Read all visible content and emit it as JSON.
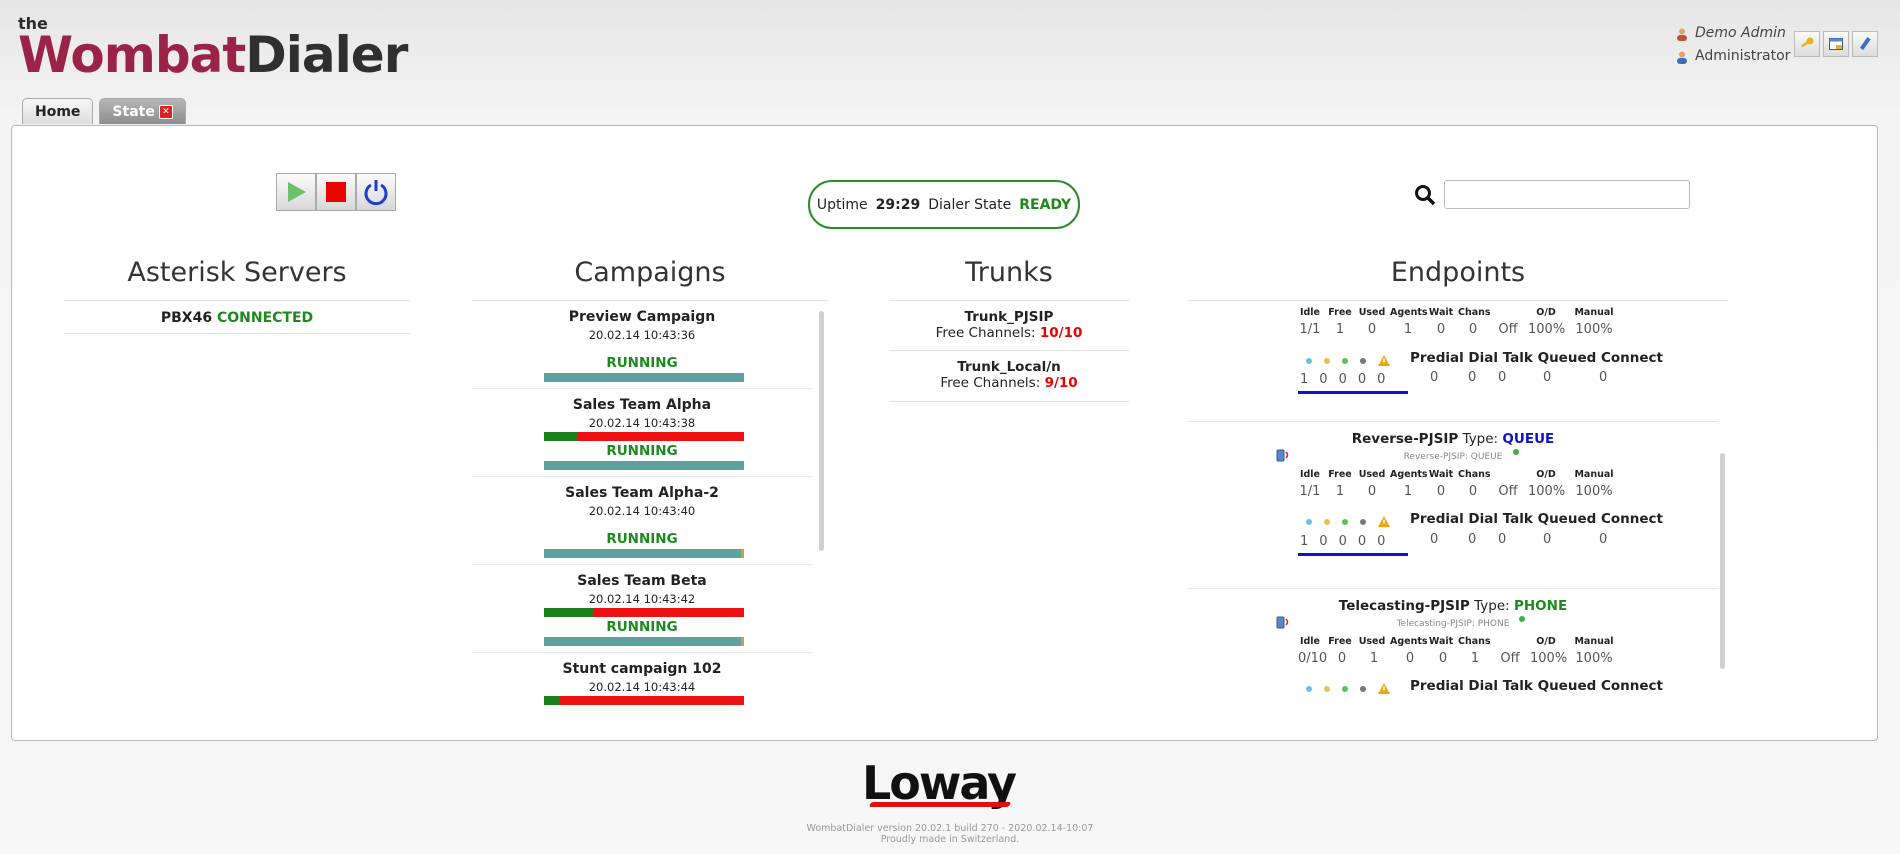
{
  "app": {
    "logo_prefix": "the",
    "logo_word1": "Wombat",
    "logo_word2": "Dialer"
  },
  "user": {
    "name": "Demo Admin",
    "role": "Administrator"
  },
  "tabs": [
    {
      "label": "Home"
    },
    {
      "label": "State"
    }
  ],
  "status": {
    "uptime_label": "Uptime",
    "uptime_value": "29:29",
    "dialer_label": "Dialer State",
    "dialer_value": "READY"
  },
  "search": {
    "value": "",
    "placeholder": ""
  },
  "sections": {
    "servers": "Asterisk Servers",
    "campaigns": "Campaigns",
    "trunks": "Trunks",
    "endpoints": "Endpoints"
  },
  "servers": [
    {
      "name": "PBX46",
      "state": "CONNECTED"
    }
  ],
  "campaigns": [
    {
      "name": "Preview Campaign",
      "time": "20.02.14 10:43:36",
      "status": "RUNNING",
      "progress": null
    },
    {
      "name": "Sales Team Alpha",
      "time": "20.02.14 10:43:38",
      "status": "RUNNING",
      "progress": 0.17
    },
    {
      "name": "Sales Team Alpha-2",
      "time": "20.02.14 10:43:40",
      "status": "RUNNING",
      "progress": null
    },
    {
      "name": "Sales Team Beta",
      "time": "20.02.14 10:43:42",
      "status": "RUNNING",
      "progress": 0.25
    },
    {
      "name": "Stunt campaign 102",
      "time": "20.02.14 10:43:44",
      "status": "",
      "progress": 0.08
    }
  ],
  "trunks": [
    {
      "name": "Trunk_PJSIP",
      "label": "Free Channels:",
      "free": "10/10"
    },
    {
      "name": "Trunk_Local/n",
      "label": "Free Channels:",
      "free": "9/10"
    }
  ],
  "endpoint_headers": [
    "Idle",
    "Free",
    "Used",
    "Agents",
    "Wait",
    "Chans",
    "O/D",
    "Manual"
  ],
  "predial_label": "Predial Dial Talk Queued Connect",
  "endpoints": [
    {
      "name": "",
      "type_label": "",
      "type": "",
      "sub": "",
      "stats": [
        "1/1",
        "1",
        "0",
        "1",
        "0",
        "0",
        "Off",
        "100%",
        "100%"
      ],
      "counts": [
        "1",
        "0",
        "0",
        "0",
        "0"
      ],
      "predial": [
        "0",
        "0",
        "0",
        "0",
        "0"
      ]
    },
    {
      "name": "Reverse-PJSIP",
      "type_label": "Type:",
      "type": "QUEUE",
      "sub": "Reverse-PJSIP: QUEUE",
      "stats": [
        "1/1",
        "1",
        "0",
        "1",
        "0",
        "0",
        "Off",
        "100%",
        "100%"
      ],
      "counts": [
        "1",
        "0",
        "0",
        "0",
        "0"
      ],
      "predial": [
        "0",
        "0",
        "0",
        "0",
        "0"
      ]
    },
    {
      "name": "Telecasting-PJSIP",
      "type_label": "Type:",
      "type": "PHONE",
      "sub": "Telecasting-PJSIP: PHONE",
      "stats": [
        "0/10",
        "0",
        "1",
        "0",
        "0",
        "1",
        "Off",
        "100%",
        "100%"
      ],
      "counts": [],
      "predial": []
    }
  ],
  "footer": {
    "brand": "Loway",
    "version": "WombatDialer version 20.02.1 build 270 - 2020.02.14-10:07",
    "made": "Proudly made in Switzerland."
  },
  "colors": {
    "brand": "#9b2349",
    "ok": "#1e8a1e",
    "alert": "#ee1111",
    "teal": "#5fa0a0",
    "queue": "#1010d0"
  }
}
